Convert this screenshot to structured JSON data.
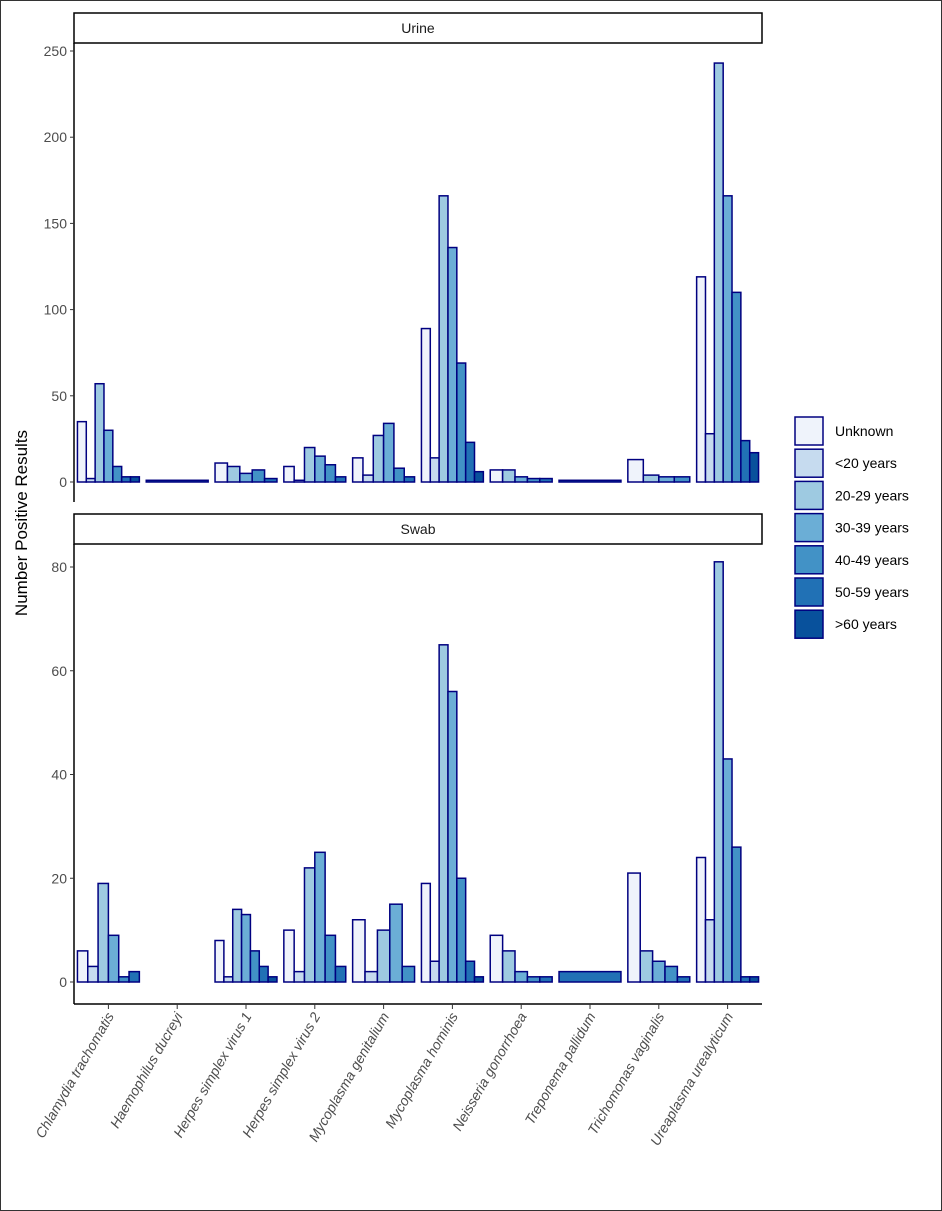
{
  "chart_data": {
    "type": "bar",
    "ylabel": "Number Positive Results",
    "categories": [
      "Chlamydia trachomatis",
      "Haemophilus ducreyi",
      "Herpes simplex virus 1",
      "Herpes simplex virus 2",
      "Mycoplasma genitalium",
      "Mycoplasma hominis",
      "Neisseria gonorrhoea",
      "Treponema pallidum",
      "Trichomonas vaginalis",
      "Ureaplasma urealyticum"
    ],
    "legend": {
      "position": "right",
      "entries": [
        "Unknown",
        "<20 years",
        "20-29 years",
        "30-39 years",
        "40-49 years",
        "50-59 years",
        ">60 years"
      ]
    },
    "colors": [
      "#eff3fb",
      "#c6dbef",
      "#9ecae1",
      "#6baed6",
      "#4292c6",
      "#2171b5",
      "#08519c"
    ],
    "outline_color": "#000080",
    "grid": false,
    "panels": [
      {
        "title": "Urine",
        "ylim": [
          0,
          250
        ],
        "yticks": [
          0,
          50,
          100,
          150,
          200,
          250
        ],
        "series": [
          {
            "name": "Unknown",
            "values": [
              35,
              null,
              11,
              9,
              14,
              89,
              7,
              null,
              13,
              119
            ]
          },
          {
            "name": "<20 years",
            "values": [
              2,
              null,
              null,
              1,
              4,
              14,
              null,
              null,
              null,
              28
            ]
          },
          {
            "name": "20-29 years",
            "values": [
              57,
              null,
              9,
              20,
              27,
              166,
              7,
              null,
              4,
              243
            ]
          },
          {
            "name": "30-39 years",
            "values": [
              30,
              null,
              5,
              15,
              34,
              136,
              3,
              null,
              3,
              166
            ]
          },
          {
            "name": "40-49 years",
            "values": [
              9,
              null,
              7,
              10,
              8,
              69,
              2,
              null,
              3,
              110
            ]
          },
          {
            "name": "50-59 years",
            "values": [
              3,
              null,
              2,
              3,
              3,
              23,
              2,
              null,
              null,
              24
            ]
          },
          {
            "name": ">60 years",
            "values": [
              3,
              1,
              null,
              null,
              null,
              6,
              null,
              1,
              null,
              17
            ]
          }
        ]
      },
      {
        "title": "Swab",
        "ylim": [
          0,
          85
        ],
        "yticks": [
          0,
          20,
          40,
          60,
          80
        ],
        "series": [
          {
            "name": "Unknown",
            "values": [
              6,
              null,
              8,
              10,
              12,
              19,
              9,
              null,
              21,
              24
            ]
          },
          {
            "name": "<20 years",
            "values": [
              3,
              null,
              1,
              2,
              2,
              4,
              null,
              null,
              null,
              12
            ]
          },
          {
            "name": "20-29 years",
            "values": [
              19,
              null,
              14,
              22,
              10,
              65,
              6,
              null,
              6,
              81
            ]
          },
          {
            "name": "30-39 years",
            "values": [
              9,
              null,
              13,
              25,
              15,
              56,
              2,
              null,
              4,
              43
            ]
          },
          {
            "name": "40-49 years",
            "values": [
              1,
              null,
              6,
              9,
              3,
              20,
              1,
              null,
              3,
              26
            ]
          },
          {
            "name": "50-59 years",
            "values": [
              2,
              null,
              3,
              3,
              null,
              4,
              1,
              2,
              1,
              1
            ]
          },
          {
            "name": ">60 years",
            "values": [
              null,
              null,
              1,
              null,
              null,
              1,
              null,
              null,
              null,
              1
            ]
          }
        ]
      }
    ]
  }
}
